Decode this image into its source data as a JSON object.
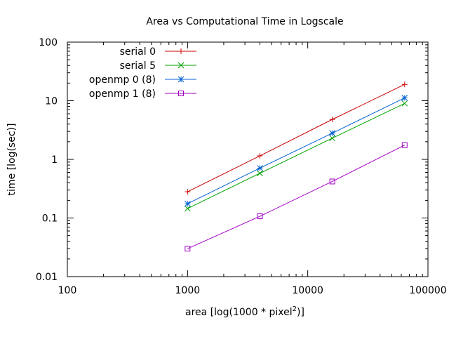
{
  "chart_data": {
    "type": "line",
    "title": "Area vs Computational Time in Logscale",
    "xlabel": "area [log(1000 * pixel",
    "xlabel_sup": "2",
    "xlabel_end": ")]",
    "ylabel": "time [log(sec)]",
    "x_scale": "log",
    "y_scale": "log",
    "xlim": [
      100,
      100000
    ],
    "ylim": [
      0.01,
      100
    ],
    "x_ticks": [
      100,
      1000,
      10000,
      100000
    ],
    "x_tick_labels": [
      "100",
      "1000",
      "10000",
      "100000"
    ],
    "y_ticks": [
      0.01,
      0.1,
      1,
      10,
      100
    ],
    "y_tick_labels": [
      "0.01",
      "0.1",
      "1",
      "10",
      "100"
    ],
    "grid": false,
    "legend_position": "top-left",
    "x": [
      1000,
      4000,
      16000,
      64000
    ],
    "series": [
      {
        "name": "serial 0",
        "color": "#cc0000",
        "marker": "plus",
        "values": [
          0.28,
          1.15,
          4.8,
          19.0
        ]
      },
      {
        "name": "serial 5",
        "color": "#00a000",
        "marker": "cross",
        "values": [
          0.145,
          0.58,
          2.3,
          9.0
        ]
      },
      {
        "name": "openmp 0 (8)",
        "color": "#0060d0",
        "marker": "star",
        "values": [
          0.175,
          0.71,
          2.8,
          11.2
        ]
      },
      {
        "name": "openmp 1 (8)",
        "color": "#a000c0",
        "marker": "square",
        "values": [
          0.03,
          0.107,
          0.42,
          1.75
        ]
      }
    ]
  }
}
